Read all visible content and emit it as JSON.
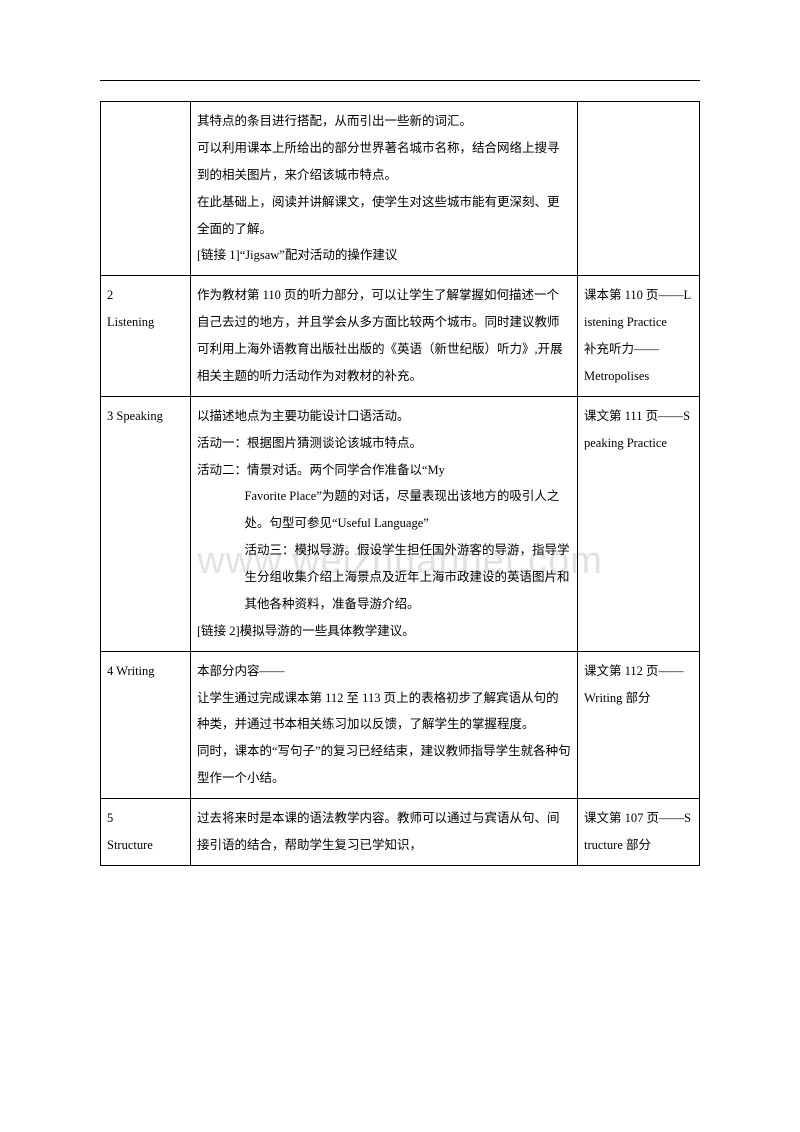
{
  "watermark": "www.weizhuannet.com",
  "row0": {
    "c2_lines": [
      "其特点的条目进行搭配，从而引出一些新的词汇。",
      "可以利用课本上所给出的部分世界著名城市名称，结合网络上搜寻到的相关图片，来介绍该城市特点。",
      "在此基础上，阅读并讲解课文，使学生对这些城市能有更深刻、更全面的了解。",
      "[链接 1]“Jigsaw”配对活动的操作建议"
    ]
  },
  "row1": {
    "c1a": "2",
    "c1b": "Listening",
    "c2": "作为教材第 110 页的听力部分，可以让学生了解掌握如何描述一个自己去过的地方，并且学会从多方面比较两个城市。同时建议教师可利用上海外语教育出版社出版的《英语（新世纪版）听力》,开展相关主题的听力活动作为对教材的补充。",
    "c3a": "课本第 110 页——Listening  Practice",
    "c3b": "补充听力——",
    "c3c": "Metropolises"
  },
  "row2": {
    "c1": " 3  Speaking",
    "c2_l1": "以描述地点为主要功能设计口语活动。",
    "c2_l2": "活动一：根据图片猜测谈论该城市特点。",
    "c2_l3": "活动二：情景对话。两个同学合作准备以“My",
    "c2_l3b": "Favorite  Place”为题的对话，尽量表现出该地方的吸引人之处。句型可参见“Useful Language”",
    "c2_l4": "活动三：模拟导游。假设学生担任国外游客的导游，指导学生分组收集介绍上海景点及近年上海市政建设的英语图片和其他各种资料，准备导游介绍。",
    "c2_l5": "[链接 2]模拟导游的一些具体教学建议。",
    "c3": "课文第 111 页——Speaking  Practice"
  },
  "row3": {
    "c1": " 4  Writing",
    "c2_l1": "本部分内容——",
    "c2_l2": "让学生通过完成课本第 112 至 113 页上的表格初步了解宾语从句的种类，并通过书本相关练习加以反馈，了解学生的掌握程度。",
    "c2_l3": "同时，课本的“写句子”的复习已经结束，建议教师指导学生就各种句型作一个小结。",
    "c3": "课文第 112 页——Writing 部分"
  },
  "row4": {
    "c1a": "5",
    "c1b": "Structure",
    "c2": "过去将来时是本课的语法教学内容。教师可以通过与宾语从句、间接引语的结合，帮助学生复习已学知识，",
    "c3": "课文第 107 页——Structure 部分"
  }
}
